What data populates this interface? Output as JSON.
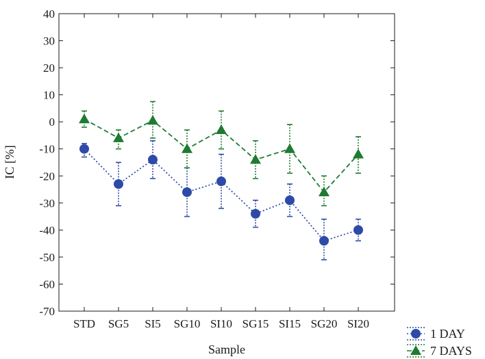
{
  "chart_data": {
    "type": "line",
    "xlabel": "Sample",
    "ylabel": "IC [%]",
    "ylim": [
      -70,
      40
    ],
    "yticks": [
      40,
      30,
      20,
      10,
      0,
      -10,
      -20,
      -30,
      -40,
      -50,
      -60,
      -70
    ],
    "yticks_text": [
      "40",
      "30",
      "20",
      "10",
      "0",
      "-10",
      "-20",
      "-30",
      "-40",
      "-50",
      "-60",
      "-70"
    ],
    "categories": [
      "STD",
      "SG5",
      "SI5",
      "SG10",
      "SI10",
      "SG15",
      "SI15",
      "SG20",
      "SI20"
    ],
    "grid": false,
    "legend_position": "bottom-right, outside plot",
    "series": [
      {
        "name": "1 DAY",
        "color": "#2e4aa8",
        "marker": "circle",
        "line_style": "dotted",
        "values": [
          -10,
          -23,
          -14,
          -26,
          -22,
          -34,
          -29,
          -44,
          -40
        ],
        "err_low": [
          -13,
          -31,
          -21,
          -35,
          -32,
          -39,
          -35,
          -51,
          -44
        ],
        "err_high": [
          -8,
          -15,
          -7,
          -17,
          -12,
          -29,
          -23,
          -36,
          -36
        ]
      },
      {
        "name": "7 DAYS",
        "color": "#1f7a32",
        "marker": "triangle",
        "line_style": "dashed",
        "values": [
          1,
          -6,
          0.5,
          -10,
          -3,
          -14,
          -10,
          -26,
          -12
        ],
        "err_low": [
          -2,
          -10,
          -6,
          -17,
          -10,
          -21,
          -19,
          -31,
          -19
        ],
        "err_high": [
          4,
          -3,
          7.5,
          -3,
          4,
          -7,
          -1,
          -20,
          -5.5
        ]
      }
    ]
  }
}
